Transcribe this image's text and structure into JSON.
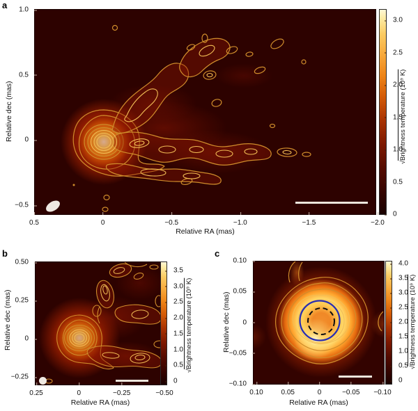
{
  "figure": {
    "panel_a_label": "a",
    "panel_b_label": "b",
    "panel_c_label": "c"
  },
  "axis": {
    "ra_label": "Relative RA (mas)",
    "dec_label": "Relative dec (mas)",
    "cbar_radical": "√",
    "cbar_label_text": "Brightness temperature (10⁹ K)",
    "cbar_label_full": "√Brightness temperature (10⁹ K)"
  },
  "panels": {
    "a": {
      "x_ticks": [
        "0.5",
        "0",
        "−0.5",
        "−1.0",
        "−1.5",
        "−2.0"
      ],
      "y_ticks": [
        "1.0",
        "0.5",
        "0",
        "−0.5"
      ],
      "cbar_ticks": [
        "3.0",
        "2.5",
        "2.0",
        "1.5",
        "1.0",
        "0.5",
        "0"
      ]
    },
    "b": {
      "x_ticks": [
        "0.25",
        "0",
        "−0.25",
        "−0.50"
      ],
      "y_ticks": [
        "0.50",
        "0.25",
        "0",
        "−0.25"
      ],
      "cbar_ticks": [
        "3.5",
        "3.0",
        "2.5",
        "2.0",
        "1.5",
        "1.0",
        "0.5",
        "0"
      ]
    },
    "c": {
      "x_ticks": [
        "0.10",
        "0.05",
        "0",
        "−0.05",
        "−0.10"
      ],
      "y_ticks": [
        "0.10",
        "0.05",
        "0",
        "−0.05",
        "−0.10"
      ],
      "cbar_ticks": [
        "4.0",
        "3.5",
        "3.0",
        "2.5",
        "2.0",
        "1.5",
        "1.0",
        "0.5",
        "0"
      ]
    }
  },
  "colors": {
    "contour_gold": "#d79432",
    "contour_bright": "#f2bd55",
    "circle_blue": "#2a2fb2",
    "circle_dashed_black": "#0e0e0e",
    "beam_white": "#efe9e2",
    "scale_bar_white": "#ece6dd",
    "background_dark": "#2d0200",
    "colormap": "hot: dark maroon → red → orange → pale yellow"
  },
  "chart_data": [
    {
      "panel": "a",
      "type": "heatmap",
      "xlabel": "Relative RA (mas)",
      "ylabel": "Relative dec (mas)",
      "xlim": [
        0.55,
        -2.05
      ],
      "ylim": [
        -0.57,
        1.0
      ],
      "x_ticks": [
        0.5,
        0,
        -0.5,
        -1.0,
        -1.5,
        -2.0
      ],
      "y_ticks": [
        1.0,
        0.5,
        0,
        -0.5
      ],
      "colorbar": {
        "label": "√Brightness temperature (10⁹ K)",
        "ticks": [
          3.0,
          2.5,
          2.0,
          1.5,
          1.0,
          0.5,
          0
        ],
        "max_value": 3.2
      },
      "features": [
        {
          "name": "core",
          "ra_mas": 0,
          "dec_mas": 0,
          "peak": 3.2
        },
        {
          "name": "jet",
          "desc": "filamentary contoured jet fanning west from the core to RA ≈ −1.45 mas, between dec ≈ −0.1 and 0.6 mas"
        },
        {
          "name": "beam",
          "desc": "white restoring-beam ellipse at bottom left"
        },
        {
          "name": "scale_bar",
          "desc": "white horizontal bar at bottom right, RA ≈ −1.25 to −1.8 mas"
        }
      ]
    },
    {
      "panel": "b",
      "type": "heatmap",
      "xlabel": "Relative RA (mas)",
      "ylabel": "Relative dec (mas)",
      "xlim": [
        0.27,
        -0.51
      ],
      "ylim": [
        -0.31,
        0.51
      ],
      "x_ticks": [
        0.25,
        0,
        -0.25,
        -0.5
      ],
      "y_ticks": [
        0.5,
        0.25,
        0,
        -0.25
      ],
      "colorbar": {
        "label": "√Brightness temperature (10⁹ K)",
        "ticks": [
          3.5,
          3.0,
          2.5,
          2.0,
          1.5,
          1.0,
          0.5,
          0
        ],
        "max_value": 3.7
      },
      "features": [
        {
          "name": "core",
          "ra_mas": 0,
          "dec_mas": 0,
          "peak": 3.7
        },
        {
          "name": "jet",
          "desc": "contoured emission extending to the north-west and west of the core"
        },
        {
          "name": "beam",
          "desc": "white circular beam at bottom left"
        },
        {
          "name": "scale_bar",
          "desc": "white horizontal bar at bottom right"
        }
      ]
    },
    {
      "panel": "c",
      "type": "heatmap",
      "xlabel": "Relative RA (mas)",
      "ylabel": "Relative dec (mas)",
      "xlim": [
        0.105,
        -0.105
      ],
      "ylim": [
        -0.105,
        0.105
      ],
      "x_ticks": [
        0.1,
        0.05,
        0,
        -0.05,
        -0.1
      ],
      "y_ticks": [
        0.1,
        0.05,
        0,
        -0.05,
        -0.1
      ],
      "colorbar": {
        "label": "√Brightness temperature (10⁹ K)",
        "ticks": [
          4.0,
          3.5,
          3.0,
          2.5,
          2.0,
          1.5,
          1.0,
          0.5,
          0
        ],
        "max_value": 4.1
      },
      "features": [
        {
          "name": "resolved_core",
          "desc": "bright limb-brightened blob centred at (0,0), radius ≈ 0.06 mas, ringed by contours"
        },
        {
          "name": "blue_circle",
          "desc": "solid blue circle of radius ≈ 0.03 mas centred on the core"
        },
        {
          "name": "dashed_circle",
          "desc": "dashed black circle of radius ≈ 0.02 mas centred on the core"
        },
        {
          "name": "scale_bar",
          "desc": "white horizontal bar at bottom right"
        }
      ]
    }
  ]
}
